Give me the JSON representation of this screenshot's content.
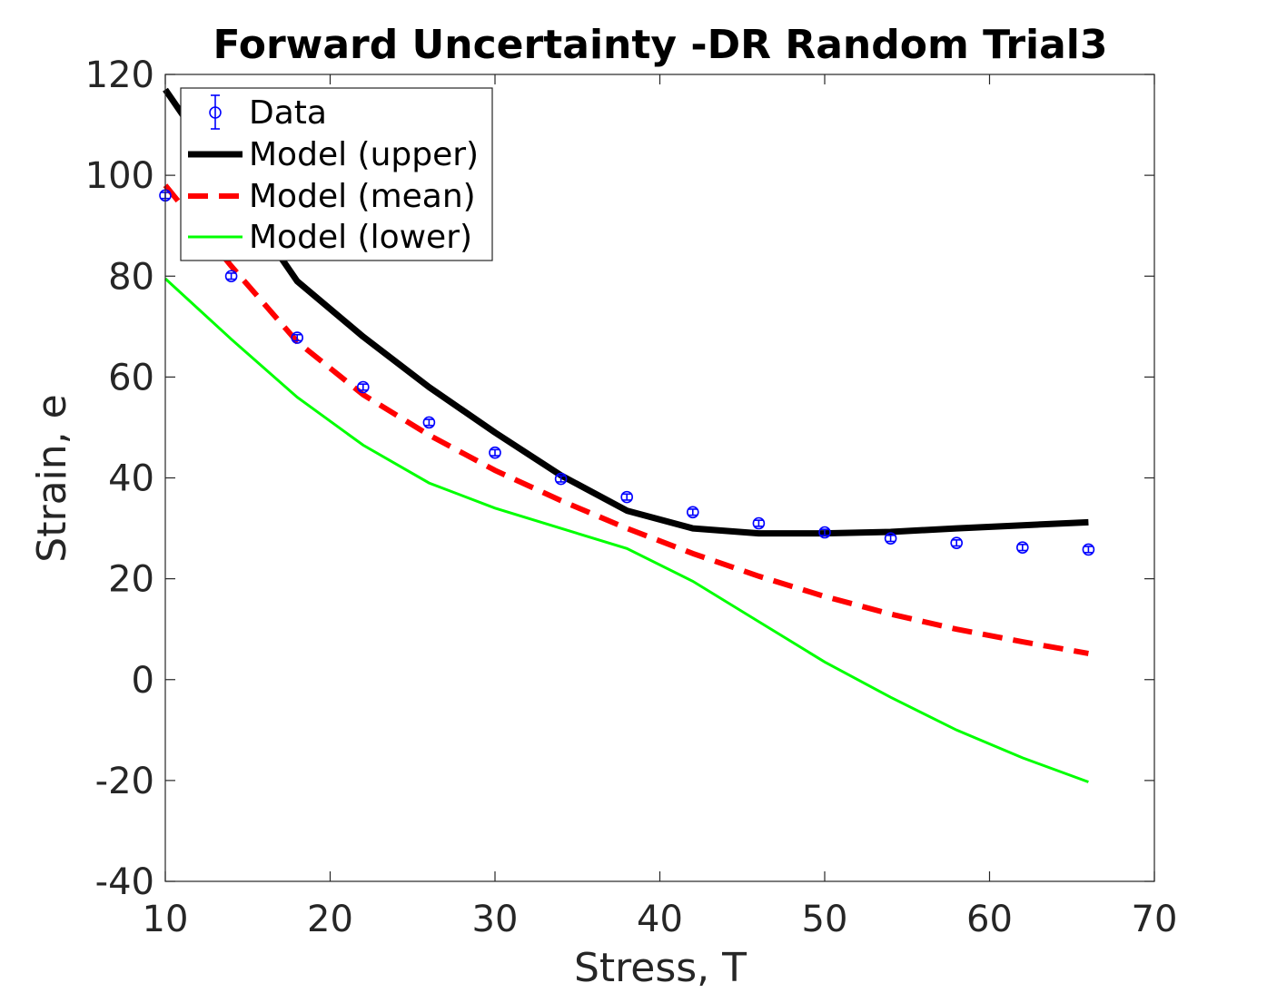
{
  "chart_data": {
    "type": "line",
    "title": "Forward Uncertainty -DR Random Trial3",
    "xlabel": "Stress, T",
    "ylabel": "Strain, e",
    "xlim": [
      10,
      70
    ],
    "ylim": [
      -40,
      120
    ],
    "xticks": [
      10,
      20,
      30,
      40,
      50,
      60,
      70
    ],
    "yticks": [
      -40,
      -20,
      0,
      20,
      40,
      60,
      80,
      100,
      120
    ],
    "xtick_labels": [
      "10",
      "20",
      "30",
      "40",
      "50",
      "60",
      "70"
    ],
    "ytick_labels": [
      "-40",
      "-20",
      "0",
      "20",
      "40",
      "60",
      "80",
      "100",
      "120"
    ],
    "grid": false,
    "legend_position": "top-left",
    "x": [
      10,
      14,
      18,
      22,
      26,
      30,
      34,
      38,
      42,
      46,
      50,
      54,
      58,
      62,
      66
    ],
    "series": [
      {
        "name": "Data",
        "kind": "errorbar",
        "marker": "circle",
        "color": "#0000ff",
        "values": [
          96,
          80,
          67.8,
          58,
          51,
          45,
          39.8,
          36.2,
          33.2,
          31,
          29.2,
          28,
          27.1,
          26.2,
          25.8
        ],
        "error": [
          0.6,
          0.6,
          0.6,
          0.6,
          0.6,
          0.6,
          0.6,
          0.6,
          0.6,
          0.6,
          0.6,
          0.6,
          0.6,
          0.6,
          0.6
        ]
      },
      {
        "name": "Model (upper)",
        "kind": "line",
        "color": "#000000",
        "dash": "solid",
        "width": "thick",
        "values": [
          117,
          98,
          79,
          68,
          58,
          49,
          40.5,
          33.5,
          30,
          29,
          29,
          29.3,
          30,
          30.6,
          31.2
        ]
      },
      {
        "name": "Model (mean)",
        "kind": "line",
        "color": "#ff0000",
        "dash": "dashed",
        "width": "thick",
        "values": [
          98,
          82,
          67,
          56.5,
          48.5,
          41.5,
          35.5,
          30,
          25,
          20.5,
          16.5,
          13,
          10,
          7.5,
          5.2
        ]
      },
      {
        "name": "Model (lower)",
        "kind": "line",
        "color": "#00ff00",
        "dash": "solid",
        "width": "thin",
        "values": [
          79.5,
          67.5,
          56,
          46.5,
          39,
          34,
          30,
          26,
          19.5,
          11.5,
          3.5,
          -3.5,
          -10,
          -15.5,
          -20.3
        ]
      }
    ]
  }
}
